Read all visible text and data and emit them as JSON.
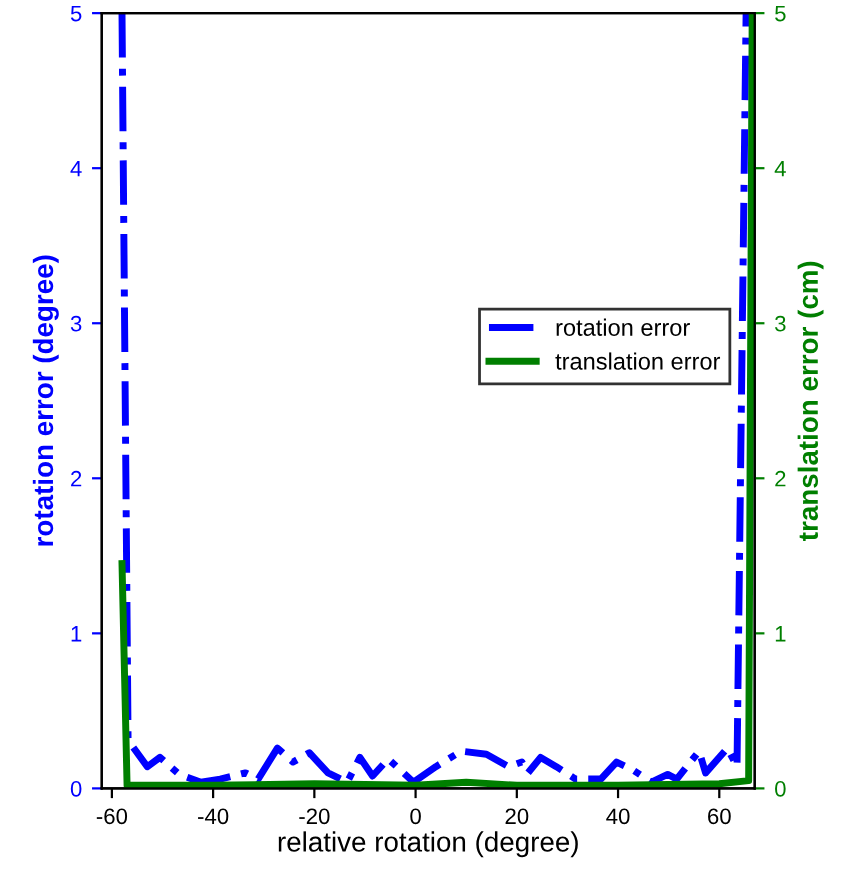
{
  "chart_data": {
    "type": "line",
    "xlabel": "relative rotation (degree)",
    "ylabel": "rotation error (degree)",
    "y2label": "translation error (cm)",
    "xlim": [
      -62,
      67
    ],
    "xticks": [
      -60,
      -40,
      -20,
      0,
      20,
      40,
      60
    ],
    "ylim": [
      0,
      5
    ],
    "yticks": [
      0,
      1,
      2,
      3,
      4,
      5
    ],
    "y2lim": [
      0,
      5
    ],
    "y2ticks": [
      0,
      1,
      2,
      3,
      4,
      5
    ],
    "legend": "right",
    "grid": false,
    "series": [
      {
        "name": "rotation error",
        "color": "#0000ff",
        "line_style": "dashdot",
        "x": [
          -58,
          -56.8,
          -53,
          -50.5,
          -46.7,
          -42.4,
          -38.6,
          -33.6,
          -31.1,
          -27.3,
          -24.2,
          -21,
          -17.3,
          -13.5,
          -11,
          -8.5,
          -5.4,
          -0.4,
          4,
          9,
          14,
          18.4,
          21,
          22.2,
          24.7,
          27.8,
          31.6,
          36.6,
          39.7,
          42.9,
          46.6,
          49.8,
          51.6,
          56,
          57.3,
          61.6,
          63.5,
          65.3
        ],
        "values": [
          5,
          0.31,
          0.14,
          0.2,
          0.09,
          0.04,
          0.06,
          0.1,
          0.06,
          0.26,
          0.17,
          0.23,
          0.1,
          0.04,
          0.2,
          0.08,
          0.19,
          0.04,
          0.14,
          0.24,
          0.22,
          0.14,
          0.17,
          0.1,
          0.2,
          0.14,
          0.06,
          0.06,
          0.17,
          0.12,
          0.04,
          0.09,
          0.06,
          0.24,
          0.1,
          0.26,
          0.14,
          5
        ]
      },
      {
        "name": "translation error",
        "color": "#007f00",
        "line_style": "solid",
        "axis": "y2",
        "x": [
          -58,
          -57,
          -40,
          -20,
          0,
          10,
          20,
          40,
          60,
          65.8,
          66.5
        ],
        "values": [
          1.45,
          0.02,
          0.02,
          0.03,
          0.02,
          0.04,
          0.02,
          0.02,
          0.03,
          0.05,
          5
        ]
      }
    ]
  }
}
